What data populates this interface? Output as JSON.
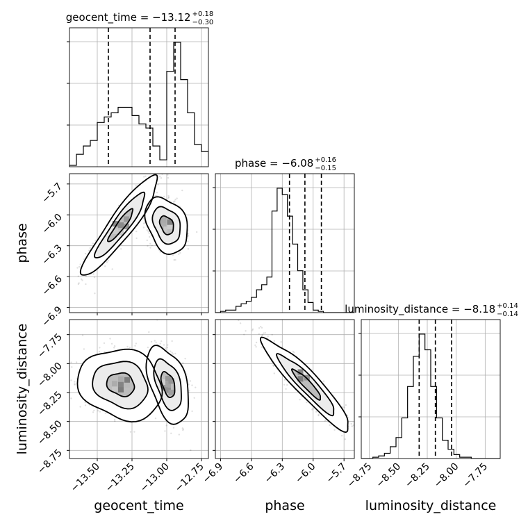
{
  "chart_data": {
    "type": "corner",
    "parameters": [
      "geocent_time",
      "phase",
      "luminosity_distance"
    ],
    "diagonal_titles": [
      {
        "label": "geocent_time = −13.12",
        "plus": "+0.18",
        "minus": "−0.30"
      },
      {
        "label": "phase = −6.08",
        "plus": "+0.16",
        "minus": "−0.15"
      },
      {
        "label": "luminosity_distance = −8.18",
        "plus": "+0.14",
        "minus": "−0.14"
      }
    ],
    "axes": {
      "geocent_time": {
        "range": [
          -13.7,
          -12.7
        ],
        "ticks": [
          -13.5,
          -13.25,
          -13.0,
          -12.75
        ],
        "tick_labels": [
          "−13.50",
          "−13.25",
          "−13.00",
          "−12.75"
        ]
      },
      "phase": {
        "range": [
          -6.95,
          -5.6
        ],
        "ticks": [
          -6.9,
          -6.6,
          -6.3,
          -6.0,
          -5.7
        ],
        "tick_labels": [
          "−6.9",
          "−6.6",
          "−6.3",
          "−6.0",
          "−5.7"
        ]
      },
      "luminosity_distance": {
        "range": [
          -8.82,
          -7.62
        ],
        "ticks": [
          -8.75,
          -8.5,
          -8.25,
          -8.0,
          -7.75
        ],
        "tick_labels": [
          "−8.75",
          "−8.50",
          "−8.25",
          "−8.00",
          "−7.75"
        ]
      }
    },
    "histograms": [
      {
        "parameter": "geocent_time",
        "bin_start": -13.7,
        "bin_width": 0.05,
        "counts": [
          1,
          9,
          15,
          19,
          32,
          36,
          39,
          43,
          43,
          37,
          31,
          28,
          15,
          5,
          69,
          90,
          63,
          39,
          16,
          11,
          1
        ],
        "quantiles": [
          -13.42,
          -13.12,
          -12.94
        ]
      },
      {
        "parameter": "phase",
        "bin_start": -6.95,
        "bin_width": 0.05,
        "counts": [
          0,
          1,
          2,
          2,
          5,
          7,
          9,
          12,
          18,
          22,
          28,
          80,
          98,
          93,
          76,
          54,
          33,
          18,
          8,
          2,
          1,
          0,
          0,
          0,
          0,
          0,
          0
        ],
        "quantiles": [
          -6.23,
          -6.08,
          -5.92
        ]
      },
      {
        "parameter": "luminosity_distance",
        "bin_start": -8.82,
        "bin_width": 0.05,
        "counts": [
          0,
          0,
          1,
          2,
          4,
          9,
          16,
          31,
          55,
          78,
          95,
          83,
          55,
          31,
          14,
          7,
          3,
          1,
          1,
          0,
          0,
          0,
          0,
          0
        ],
        "quantiles": [
          -8.32,
          -8.18,
          -8.04
        ]
      }
    ],
    "contours_2d": [
      {
        "x": "geocent_time",
        "y": "phase",
        "modes": [
          {
            "cx": -13.33,
            "cy": -6.1,
            "sx": 0.09,
            "sy": 0.16,
            "rho": 0.92
          },
          {
            "cx": -13.0,
            "cy": -6.1,
            "sx": 0.05,
            "sy": 0.09,
            "rho": -0.3
          }
        ]
      },
      {
        "x": "geocent_time",
        "y": "luminosity_distance",
        "modes": [
          {
            "cx": -13.33,
            "cy": -8.18,
            "sx": 0.1,
            "sy": 0.1,
            "rho": -0.15
          },
          {
            "cx": -12.99,
            "cy": -8.18,
            "sx": 0.05,
            "sy": 0.11,
            "rho": -0.45
          }
        ]
      },
      {
        "x": "phase",
        "y": "luminosity_distance",
        "modes": [
          {
            "cx": -6.06,
            "cy": -8.18,
            "sx": 0.14,
            "sy": 0.13,
            "rho": -0.93
          }
        ]
      }
    ],
    "contour_levels": [
      0.39,
      0.86,
      0.99
    ],
    "grid": true
  }
}
